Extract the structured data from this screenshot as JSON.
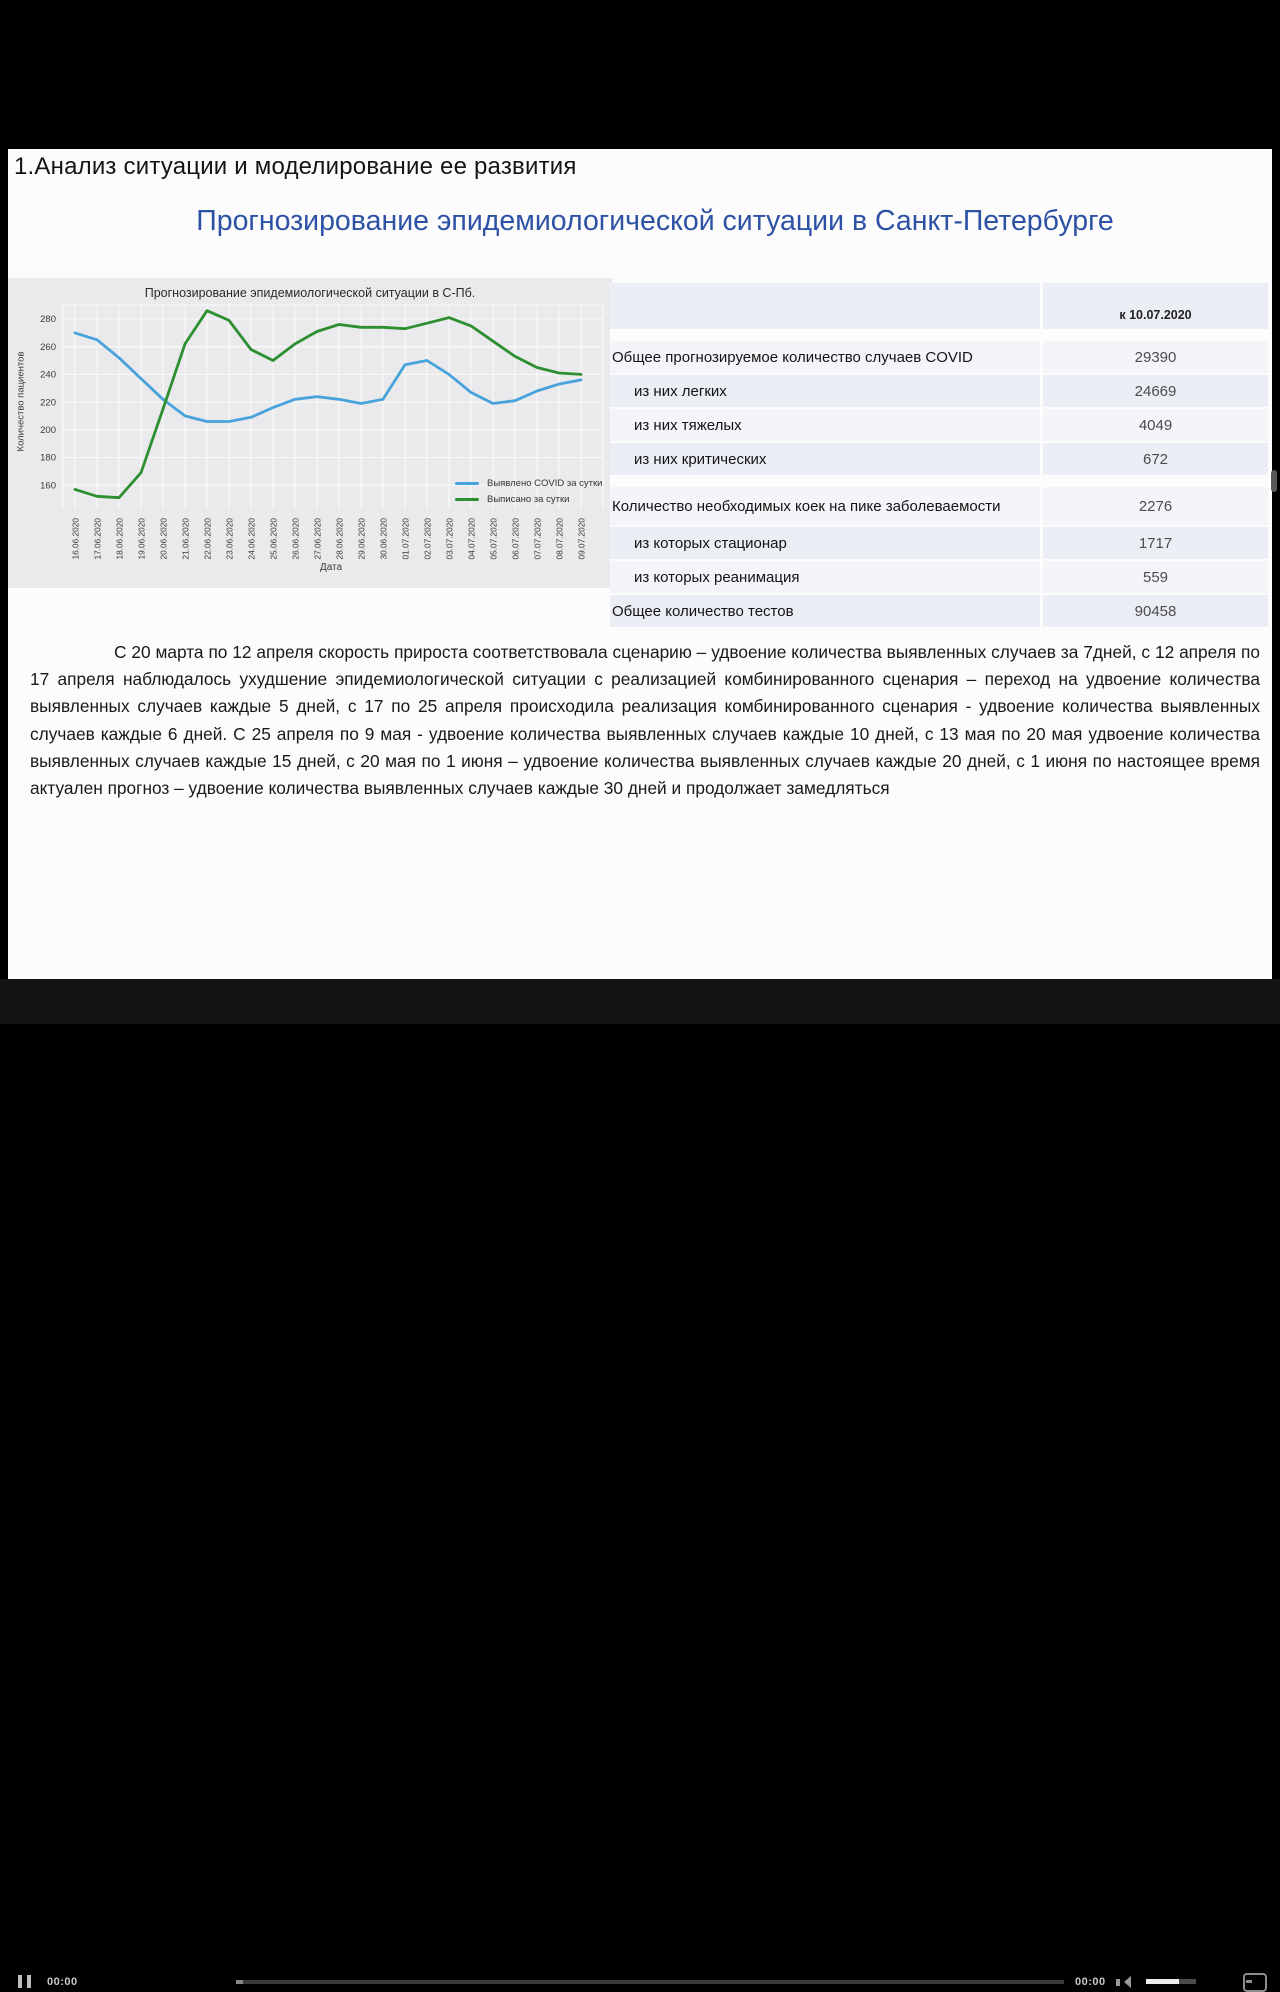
{
  "page": {
    "heading": "1.Анализ ситуации и моделирование ее развития",
    "title": "Прогнозирование эпидемиологической ситуации в Санкт-Петербурге"
  },
  "paragraph": "С 20 марта по 12 апреля скорость прироста соответствовала сценарию – удвоение количества выявленных случаев за 7дней, с 12 апреля по 17 апреля наблюдалось ухудшение эпидемиологической ситуации с реализацией комбинированного сценария – переход на удвоение количества выявленных случаев каждые 5 дней, с 17 по 25 апреля происходила реализация комбинированного сценария - удвоение количества выявленных случаев каждые 6 дней. С 25 апреля по 9 мая - удвоение количества выявленных случаев каждые 10 дней, с 13 мая по 20 мая удвоение количества выявленных случаев каждые 15 дней, с 20 мая по 1 июня – удвоение количества выявленных случаев каждые 20 дней, с 1 июня по настоящее время актуален прогноз – удвоение количества выявленных случаев каждые 30 дней и продолжает замедляться",
  "table": {
    "header": "к 10.07.2020",
    "rows": [
      {
        "label": "Общее прогнозируемое количество случаев COVID",
        "value": "29390",
        "indent": false
      },
      {
        "label": "из них легких",
        "value": "24669",
        "indent": true
      },
      {
        "label": "из них тяжелых",
        "value": "4049",
        "indent": true
      },
      {
        "label": "из них критических",
        "value": "672",
        "indent": true
      },
      {
        "label": "Количество необходимых коек на пике заболеваемости",
        "value": "2276",
        "indent": false
      },
      {
        "label": "из которых стационар",
        "value": "1717",
        "indent": true
      },
      {
        "label": "из которых реанимация",
        "value": "559",
        "indent": true
      },
      {
        "label": "Общее количество тестов",
        "value": "90458",
        "indent": false
      }
    ]
  },
  "chart_data": {
    "type": "line",
    "title": "Прогнозирование эпидемиологической ситуации в С-Пб.",
    "xlabel": "Дата",
    "ylabel": "Количество пациентов",
    "ylim": [
      145,
      292
    ],
    "yticks": [
      160,
      180,
      200,
      220,
      240,
      260,
      280
    ],
    "grid": true,
    "legend_position": "lower right",
    "categories": [
      "16.06.2020",
      "17.06.2020",
      "18.06.2020",
      "19.06.2020",
      "20.06.2020",
      "21.06.2020",
      "22.06.2020",
      "23.06.2020",
      "24.06.2020",
      "25.06.2020",
      "26.06.2020",
      "27.06.2020",
      "28.06.2020",
      "29.06.2020",
      "30.06.2020",
      "01.07.2020",
      "02.07.2020",
      "03.07.2020",
      "04.07.2020",
      "05.07.2020",
      "06.07.2020",
      "07.07.2020",
      "08.07.2020",
      "09.07.2020"
    ],
    "series": [
      {
        "name": "Выявлено COVID за сутки",
        "color": "#48a2db",
        "values": [
          270,
          265,
          252,
          237,
          222,
          210,
          206,
          206,
          209,
          216,
          222,
          224,
          222,
          219,
          222,
          247,
          250,
          240,
          227,
          219,
          221,
          228,
          233,
          236
        ]
      },
      {
        "name": "Выписано за сутки",
        "color": "#2e8f31",
        "values": [
          157,
          152,
          151,
          169,
          215,
          262,
          286,
          279,
          258,
          250,
          262,
          271,
          276,
          274,
          274,
          273,
          277,
          281,
          275,
          264,
          253,
          245,
          241,
          240
        ]
      }
    ]
  },
  "player": {
    "elapsed": "00:00",
    "remaining": "00:00"
  },
  "colors": {
    "accent_title": "#2d51a4",
    "line_blue": "#48a2db",
    "line_green": "#2e8f31",
    "chart_bg": "#eaeaec"
  }
}
